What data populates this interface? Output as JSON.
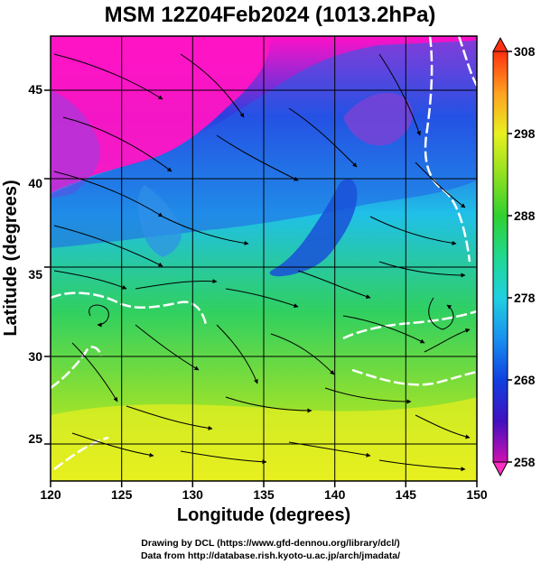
{
  "title": "MSM 12Z04Feb2024 (1013.2hPa)",
  "map": {
    "xlabel": "Longitude (degrees)",
    "ylabel": "Latitude  (degrees)",
    "lon_range": [
      120,
      150
    ],
    "lat_range": [
      22.5,
      47.6
    ],
    "lon_ticks": [
      "120",
      "125",
      "130",
      "135",
      "140",
      "145",
      "150"
    ],
    "lat_ticks": [
      "25",
      "30",
      "35",
      "40",
      "45"
    ],
    "field": "temperature shaded with wind streamlines",
    "colors": {
      "cold": "#ff10c8",
      "cool": "#2050e8",
      "mid": "#20d8d8",
      "warm": "#30d040",
      "hot": "#e8f020"
    }
  },
  "colorbar": {
    "ticks": [
      "308",
      "298",
      "288",
      "278",
      "268",
      "258"
    ],
    "range": [
      258,
      308
    ],
    "stops": [
      "#d010b0",
      "#4010c0",
      "#1040e0",
      "#1890f0",
      "#20d0e0",
      "#20d890",
      "#30d030",
      "#90e020",
      "#e8f020",
      "#ffa020",
      "#ff3010"
    ]
  },
  "credits": {
    "line1": "Drawing by DCL (https://www.gfd-dennou.org/library/dcl/)",
    "line2": "Data from http://database.rish.kyoto-u.ac.jp/arch/jmadata/"
  }
}
